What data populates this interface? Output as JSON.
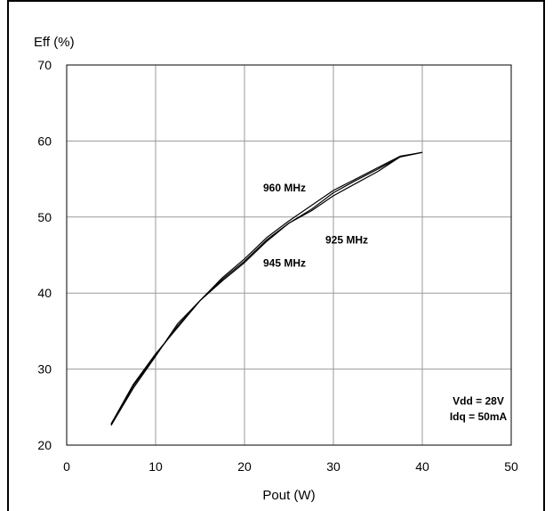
{
  "chart_data": {
    "type": "line",
    "title": "",
    "xlabel": "Pout (W)",
    "ylabel": "Eff (%)",
    "xlim": [
      0,
      50
    ],
    "ylim": [
      20,
      70
    ],
    "xticks": [
      "0",
      "10",
      "20",
      "30",
      "40",
      "50"
    ],
    "yticks": [
      "20",
      "30",
      "40",
      "50",
      "60",
      "70"
    ],
    "grid": true,
    "series": [
      {
        "name": "960 MHz",
        "x": [
          5,
          7.5,
          10,
          12.5,
          15,
          17.5,
          20,
          22.5,
          25,
          27.5,
          30,
          32.5,
          35,
          37.5,
          40
        ],
        "y": [
          22.8,
          28.0,
          32.0,
          35.5,
          39.0,
          42.0,
          44.5,
          47.3,
          49.5,
          51.5,
          53.5,
          55.0,
          56.5,
          58.0,
          58.5
        ]
      },
      {
        "name": "925 MHz",
        "x": [
          5,
          7.5,
          10,
          12.5,
          15,
          17.5,
          20,
          22.5,
          25,
          27.5,
          30,
          32.5,
          35,
          37.5,
          40
        ],
        "y": [
          22.6,
          27.5,
          31.7,
          36.0,
          39.0,
          41.8,
          44.2,
          47.0,
          49.2,
          50.8,
          52.8,
          54.4,
          56.0,
          57.9,
          58.5
        ]
      },
      {
        "name": "945 MHz",
        "x": [
          5,
          7.5,
          10,
          12.5,
          15,
          17.5,
          20,
          22.5,
          25,
          27.5,
          30,
          32.5,
          35,
          37.5,
          40
        ],
        "y": [
          22.7,
          27.8,
          31.8,
          35.7,
          39.0,
          41.6,
          44.0,
          46.8,
          49.2,
          51.0,
          53.2,
          54.8,
          56.3,
          57.9,
          58.5
        ]
      }
    ],
    "annotations": [
      {
        "text": "960 MHz",
        "x": 24.5,
        "y": 53.4
      },
      {
        "text": "925 MHz",
        "x": 31.5,
        "y": 46.5
      },
      {
        "text": "945 MHz",
        "x": 24.5,
        "y": 43.5
      },
      {
        "text": "Vdd = 28V",
        "x": 46.3,
        "y": 25.3
      },
      {
        "text": "Idq = 50mA",
        "x": 46.3,
        "y": 23.3
      }
    ]
  }
}
